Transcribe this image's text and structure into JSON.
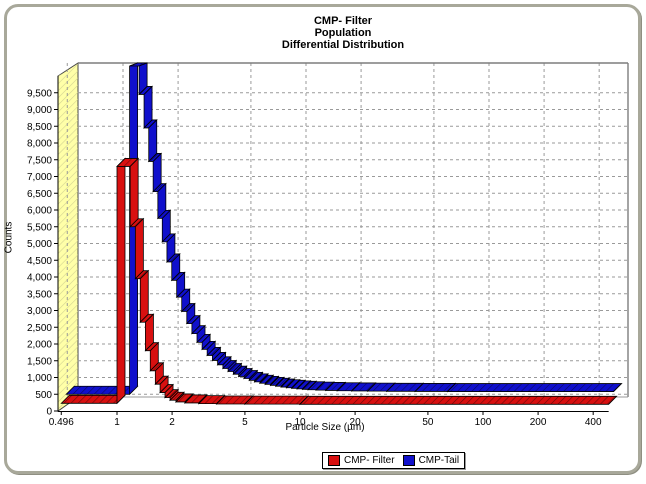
{
  "title": {
    "line1": "CMP- Filter",
    "line2": "Population",
    "line3": "Differential Distribution"
  },
  "axes": {
    "y_label": "Counts",
    "x_label": "Particle Size (µm)",
    "y_tick_labels": [
      "0",
      "500",
      "1,000",
      "1,500",
      "2,000",
      "2,500",
      "3,000",
      "3,500",
      "4,000",
      "4,500",
      "5,000",
      "5,500",
      "6,000",
      "6,500",
      "7,000",
      "7,500",
      "8,000",
      "8,500",
      "9,000",
      "9,500"
    ],
    "y_tick_step": 500,
    "y_max": 10000,
    "x_ticks": [
      {
        "value": 0.496,
        "label": "0.496"
      },
      {
        "value": 1,
        "label": "1"
      },
      {
        "value": 2,
        "label": "2"
      },
      {
        "value": 5,
        "label": "5"
      },
      {
        "value": 10,
        "label": "10"
      },
      {
        "value": 20,
        "label": "20"
      },
      {
        "value": 50,
        "label": "50"
      },
      {
        "value": 100,
        "label": "100"
      },
      {
        "value": 200,
        "label": "200"
      },
      {
        "value": 400,
        "label": "400"
      }
    ]
  },
  "legend": {
    "items": [
      {
        "label": "CMP- Filter",
        "color": "#d81010"
      },
      {
        "label": "CMP-Tail",
        "color": "#1010cc"
      }
    ]
  },
  "colors": {
    "wall": "#ffffa8",
    "wall_hatch": "#cfcf8e",
    "grid": "#9a9a9a",
    "frame": "#7d7d7d",
    "panel_border": "#a8a89a",
    "series_red": "#d81010",
    "series_blue": "#1010cc"
  },
  "chart_data": {
    "type": "area",
    "subtype": "3d-step-ribbon-histogram",
    "x_scale": "log",
    "x_range_um": [
      0.496,
      486
    ],
    "y_range_counts": [
      0,
      10000
    ],
    "grid": true,
    "legend_position": "bottom-center",
    "title": "CMP- Filter Population Differential Distribution",
    "xlabel": "Particle Size (µm)",
    "ylabel": "Counts",
    "series": [
      {
        "name": "CMP-Tail",
        "color": "#1010cc",
        "points": [
          [
            0.496,
            350
          ],
          [
            1.1,
            10150
          ],
          [
            1.24,
            9300
          ],
          [
            1.32,
            8300
          ],
          [
            1.4,
            7300
          ],
          [
            1.48,
            6400
          ],
          [
            1.57,
            5600
          ],
          [
            1.66,
            4900
          ],
          [
            1.76,
            4300
          ],
          [
            1.87,
            3750
          ],
          [
            1.99,
            3250
          ],
          [
            2.12,
            2820
          ],
          [
            2.26,
            2460
          ],
          [
            2.41,
            2160
          ],
          [
            2.57,
            1900
          ],
          [
            2.74,
            1690
          ],
          [
            2.92,
            1510
          ],
          [
            3.12,
            1360
          ],
          [
            3.33,
            1230
          ],
          [
            3.56,
            1120
          ],
          [
            3.8,
            1030
          ],
          [
            4.06,
            950
          ],
          [
            4.34,
            880
          ],
          [
            4.64,
            820
          ],
          [
            4.96,
            765
          ],
          [
            5.3,
            720
          ],
          [
            5.67,
            680
          ],
          [
            6.06,
            645
          ],
          [
            6.48,
            615
          ],
          [
            6.93,
            590
          ],
          [
            7.41,
            565
          ],
          [
            7.92,
            545
          ],
          [
            8.47,
            528
          ],
          [
            9.06,
            512
          ],
          [
            9.69,
            498
          ],
          [
            10.4,
            486
          ],
          [
            11.5,
            475
          ],
          [
            13,
            465
          ],
          [
            15,
            456
          ],
          [
            18,
            449
          ],
          [
            22,
            443
          ],
          [
            28,
            438
          ],
          [
            40,
            434
          ],
          [
            60,
            431
          ],
          [
            486,
            430
          ]
        ]
      },
      {
        "name": "CMP- Filter",
        "color": "#d81010",
        "points": [
          [
            0.496,
            230
          ],
          [
            1.0,
            7300
          ],
          [
            1.18,
            5500
          ],
          [
            1.26,
            3950
          ],
          [
            1.34,
            2650
          ],
          [
            1.43,
            1800
          ],
          [
            1.52,
            1200
          ],
          [
            1.62,
            800
          ],
          [
            1.72,
            550
          ],
          [
            1.83,
            400
          ],
          [
            1.95,
            320
          ],
          [
            2.1,
            270
          ],
          [
            2.35,
            240
          ],
          [
            2.8,
            220
          ],
          [
            3.5,
            210
          ],
          [
            5.0,
            205
          ],
          [
            10.0,
            200
          ],
          [
            486,
            200
          ]
        ]
      }
    ]
  }
}
